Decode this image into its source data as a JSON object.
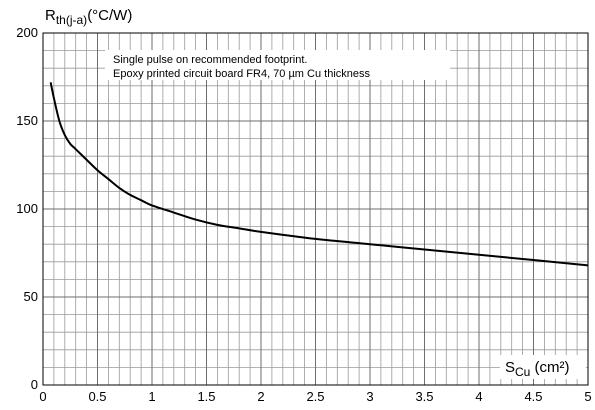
{
  "chart_data": {
    "type": "line",
    "ylabel_main": "R",
    "ylabel_sub": "th(j-a)",
    "ylabel_unit": "(°C/W)",
    "xlabel_main": "S",
    "xlabel_sub": "Cu",
    "xlabel_unit": " (cm²)",
    "annotation": [
      "Single  pulse  on  recommended  footprint.",
      "Epoxy  printed  circuit board FR4, 70 µm Cu thickness"
    ],
    "xlim": [
      0,
      5
    ],
    "ylim": [
      0,
      200
    ],
    "x_ticks": [
      "0",
      "0.5",
      "1",
      "1.5",
      "2",
      "2.5",
      "3",
      "3.5",
      "4",
      "4.5",
      "5"
    ],
    "y_ticks": [
      "0",
      "50",
      "100",
      "150",
      "200"
    ],
    "x_minor_step": 0.1,
    "y_minor_step": 10,
    "grid": true,
    "series": [
      {
        "x": [
          0.07,
          0.1,
          0.15,
          0.2,
          0.25,
          0.3,
          0.4,
          0.5,
          0.6,
          0.7,
          0.8,
          0.9,
          1.0,
          1.2,
          1.4,
          1.6,
          1.8,
          2.0,
          2.5,
          3.0,
          3.5,
          4.0,
          4.5,
          5.0
        ],
        "y": [
          172,
          163,
          150,
          142,
          137,
          134,
          128,
          122,
          117,
          112,
          108,
          105,
          102,
          98,
          94,
          91,
          89,
          87,
          83,
          80,
          77,
          74,
          71,
          68
        ],
        "color": "#000000"
      }
    ]
  }
}
